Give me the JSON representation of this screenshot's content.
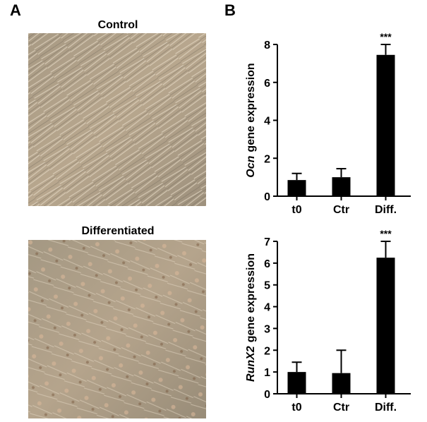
{
  "panels": {
    "a": {
      "label": "A",
      "images": [
        "Control",
        "Differentiated"
      ]
    },
    "b": {
      "label": "B"
    }
  },
  "chart_data": [
    {
      "type": "bar",
      "ylabel_gene": "Ocn",
      "ylabel": "gene expression",
      "categories": [
        "t0",
        "Ctr",
        "Diff."
      ],
      "values": [
        0.85,
        1.0,
        7.45
      ],
      "errors": [
        0.35,
        0.45,
        0.55
      ],
      "value_annotations": [
        null,
        null,
        "***"
      ],
      "color": "#000000",
      "ylim": [
        0,
        8
      ],
      "yticks": [
        0,
        2,
        4,
        6,
        8
      ]
    },
    {
      "type": "bar",
      "ylabel_gene": "RunX2",
      "ylabel": "gene expression",
      "categories": [
        "t0",
        "Ctr",
        "Diff."
      ],
      "values": [
        1.0,
        0.95,
        6.25
      ],
      "errors": [
        0.45,
        1.05,
        0.75
      ],
      "value_annotations": [
        null,
        null,
        "***"
      ],
      "color": "#000000",
      "ylim": [
        0,
        7
      ],
      "yticks": [
        0,
        1,
        2,
        3,
        4,
        5,
        6,
        7
      ]
    }
  ]
}
